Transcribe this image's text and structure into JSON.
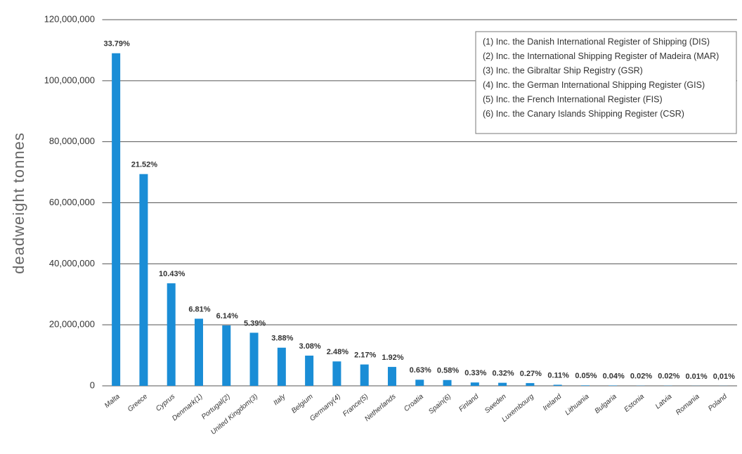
{
  "chart_data": {
    "type": "bar",
    "y_label": "deadweight tonnes",
    "categories": [
      "Malta",
      "Greece",
      "Cyprus",
      "Denmark(1)",
      "Portugal(2)",
      "United Kingdom(3)",
      "Italy",
      "Belgium",
      "Germany(4)",
      "France(5)",
      "Netherlands",
      "Croatia",
      "Spain(6)",
      "Finland",
      "Sweden",
      "Luxembourg",
      "Ireland",
      "Lithuania",
      "Bulgaria",
      "Estonia",
      "Latvia",
      "Romania",
      "Poland"
    ],
    "values": [
      109000000,
      69400000,
      33600000,
      22000000,
      19800000,
      17400000,
      12500000,
      9900000,
      8000000,
      7000000,
      6200000,
      2000000,
      1900000,
      1100000,
      1000000,
      900000,
      350000,
      160000,
      130000,
      60000,
      60000,
      30000,
      30000
    ],
    "share_labels": [
      "33.79%",
      "21.52%",
      "10.43%",
      "6.81%",
      "6.14%",
      "5.39%",
      "3.88%",
      "3.08%",
      "2.48%",
      "2.17%",
      "1.92%",
      "0.63%",
      "0.58%",
      "0.33%",
      "0.32%",
      "0.27%",
      "0.11%",
      "0.05%",
      "0.04%",
      "0.02%",
      "0.02%",
      "0.01%",
      "0,01%"
    ],
    "color": "#1a8dd6",
    "ylim": [
      0,
      120000000
    ],
    "yticks": [
      0,
      {
        "value": 20000000,
        "label": "20,000,000"
      },
      {
        "value": 40000000,
        "label": "40,000,000"
      },
      {
        "value": 60000000,
        "label": "60,000,000"
      },
      {
        "value": 80000000,
        "label": "80,000,000"
      },
      {
        "value": 100000000,
        "label": "100,000,000"
      },
      {
        "value": 120000000,
        "label": "120,000,000"
      }
    ],
    "grid": true,
    "notes": [
      "(1) Inc. the Danish International Register of Shipping (DIS)",
      "(2) Inc. the International Shipping Register of Madeira (MAR)",
      "(3) Inc. the Gibraltar Ship Registry (GSR)",
      "(4) Inc. the German International Shipping Register (GIS)",
      "(5) Inc. the French International Register (FIS)",
      "(6) Inc. the Canary Islands Shipping Register (CSR)"
    ]
  }
}
